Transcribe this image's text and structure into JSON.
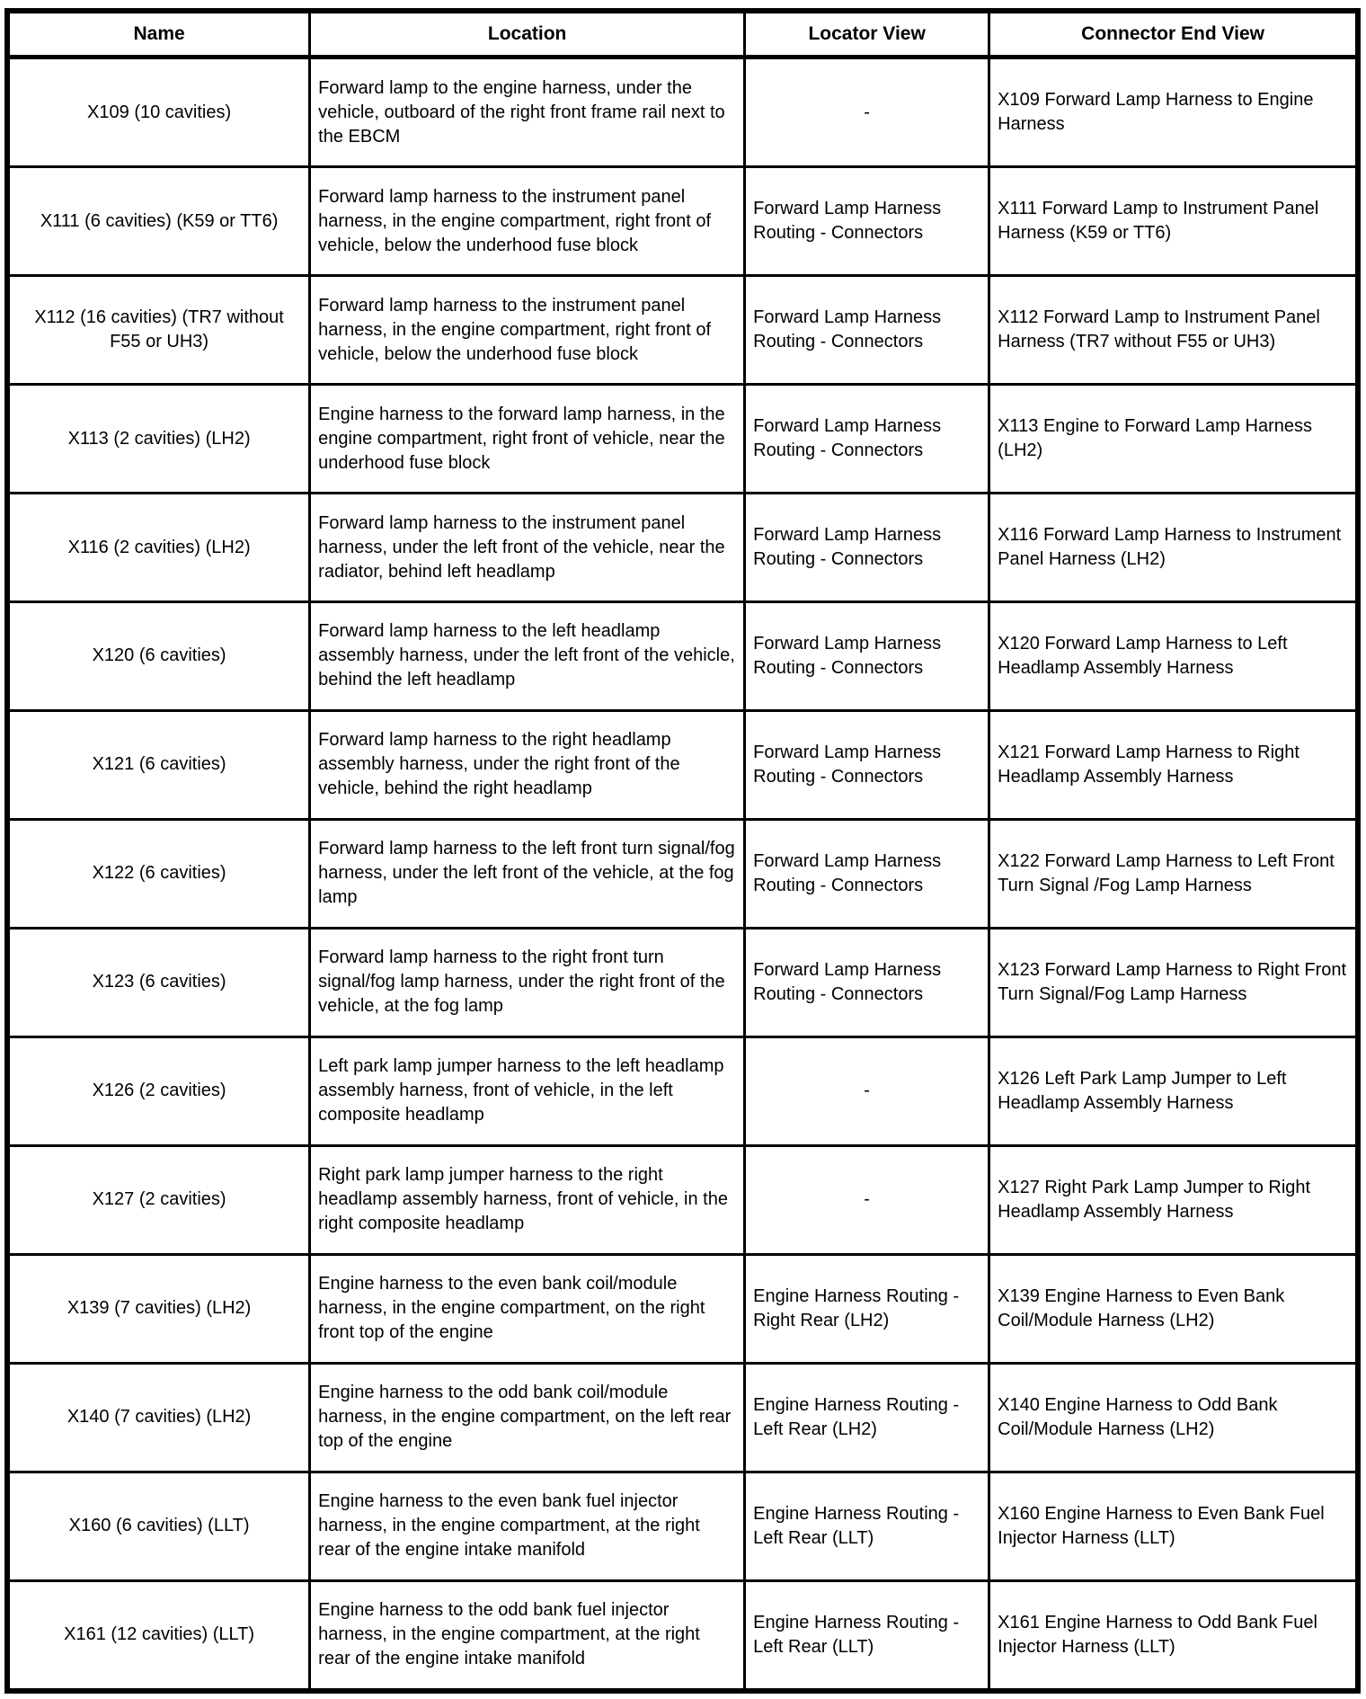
{
  "table": {
    "columns": [
      "Name",
      "Location",
      "Locator View",
      "Connector End View"
    ],
    "rows": [
      {
        "name": "X109 (10 cavities)",
        "location": "Forward lamp to the engine harness, under the vehicle, outboard of the right front frame rail next to the EBCM",
        "locator_view": "-",
        "connector_end_view": "X109 Forward Lamp Harness to Engine Harness"
      },
      {
        "name": "X111 (6 cavities) (K59 or TT6)",
        "location": "Forward lamp harness to the instrument panel harness, in the engine compartment, right front of vehicle, below the underhood fuse block",
        "locator_view": "Forward Lamp Harness Routing - Connectors",
        "connector_end_view": "X111 Forward Lamp to Instrument Panel Harness (K59 or TT6)"
      },
      {
        "name": "X112 (16 cavities) (TR7 without F55 or UH3)",
        "location": "Forward lamp harness to the instrument panel harness, in the engine compartment, right front of vehicle, below the underhood fuse block",
        "locator_view": "Forward Lamp Harness Routing - Connectors",
        "connector_end_view": "X112 Forward Lamp to Instrument Panel Harness (TR7 without F55 or UH3)"
      },
      {
        "name": "X113 (2 cavities) (LH2)",
        "location": "Engine harness to the forward lamp harness, in the engine compartment, right front of vehicle, near the underhood fuse block",
        "locator_view": "Forward Lamp Harness Routing - Connectors",
        "connector_end_view": "X113 Engine to Forward Lamp Harness (LH2)"
      },
      {
        "name": "X116 (2 cavities) (LH2)",
        "location": "Forward lamp harness to the instrument panel harness, under the left front of the vehicle, near the radiator, behind left headlamp",
        "locator_view": "Forward Lamp Harness Routing - Connectors",
        "connector_end_view": "X116 Forward Lamp Harness to Instrument Panel Harness (LH2)"
      },
      {
        "name": "X120 (6 cavities)",
        "location": "Forward lamp harness to the left headlamp assembly harness, under the left front of the vehicle, behind the left headlamp",
        "locator_view": "Forward Lamp Harness Routing - Connectors",
        "connector_end_view": "X120 Forward Lamp Harness to Left Headlamp Assembly Harness"
      },
      {
        "name": "X121 (6 cavities)",
        "location": "Forward lamp harness to the right headlamp assembly harness, under the right front of the vehicle, behind the right headlamp",
        "locator_view": "Forward Lamp Harness Routing - Connectors",
        "connector_end_view": "X121 Forward Lamp Harness to Right Headlamp Assembly Harness"
      },
      {
        "name": "X122 (6 cavities)",
        "location": "Forward lamp harness to the left front turn signal/fog harness, under the left front of the vehicle, at the fog lamp",
        "locator_view": "Forward Lamp Harness Routing - Connectors",
        "connector_end_view": "X122 Forward Lamp Harness to Left Front Turn Signal /Fog Lamp Harness"
      },
      {
        "name": "X123 (6 cavities)",
        "location": "Forward lamp harness to the right front turn signal/fog lamp harness, under the right front of the vehicle, at the fog lamp",
        "locator_view": "Forward Lamp Harness Routing - Connectors",
        "connector_end_view": "X123 Forward Lamp Harness to Right Front Turn Signal/Fog Lamp Harness"
      },
      {
        "name": "X126 (2 cavities)",
        "location": "Left park lamp jumper harness to the left headlamp assembly harness, front of vehicle, in the left composite headlamp",
        "locator_view": "-",
        "connector_end_view": "X126 Left Park Lamp Jumper to Left Headlamp Assembly Harness"
      },
      {
        "name": "X127 (2 cavities)",
        "location": "Right park lamp jumper harness to the right headlamp assembly harness, front of vehicle, in the right composite headlamp",
        "locator_view": "-",
        "connector_end_view": "X127 Right Park Lamp Jumper to Right Headlamp Assembly Harness"
      },
      {
        "name": "X139 (7 cavities) (LH2)",
        "location": "Engine harness to the even bank coil/module harness, in the engine compartment, on the right front top of the engine",
        "locator_view": "Engine Harness Routing - Right Rear (LH2)",
        "connector_end_view": "X139 Engine Harness to Even Bank Coil/Module Harness (LH2)"
      },
      {
        "name": "X140 (7 cavities) (LH2)",
        "location": "Engine harness to the odd bank coil/module harness, in the engine compartment, on the left rear top of the engine",
        "locator_view": "Engine Harness Routing - Left Rear (LH2)",
        "connector_end_view": "X140 Engine Harness to Odd Bank Coil/Module Harness (LH2)"
      },
      {
        "name": "X160 (6 cavities) (LLT)",
        "location": "Engine harness to the even bank fuel injector harness, in the engine compartment, at the right rear of the engine intake manifold",
        "locator_view": "Engine Harness Routing - Left Rear (LLT)",
        "connector_end_view": "X160 Engine Harness to Even Bank Fuel Injector Harness (LLT)"
      },
      {
        "name": "X161 (12 cavities) (LLT)",
        "location": "Engine harness to the odd bank fuel injector harness, in the engine compartment, at the right rear of the engine intake manifold",
        "locator_view": "Engine Harness Routing - Left Rear (LLT)",
        "connector_end_view": "X161 Engine Harness to Odd Bank Fuel Injector Harness (LLT)"
      }
    ]
  }
}
